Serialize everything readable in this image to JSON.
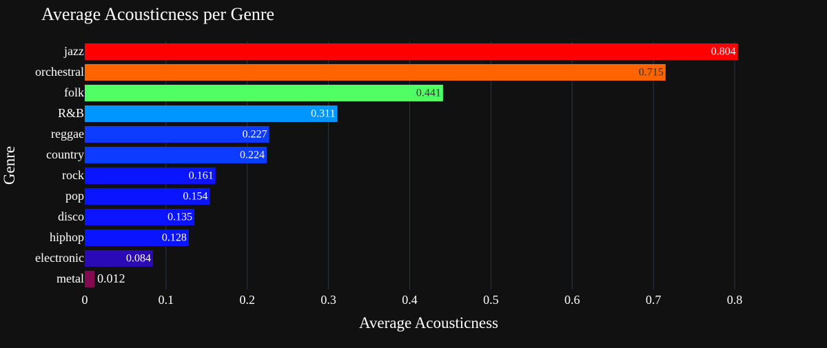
{
  "chart_data": {
    "type": "bar",
    "orientation": "horizontal",
    "title": "Average Acousticness per Genre",
    "xlabel": "Average Acousticness",
    "ylabel": "Genre",
    "categories": [
      "jazz",
      "orchestral",
      "folk",
      "R&B",
      "reggae",
      "country",
      "rock",
      "pop",
      "disco",
      "hiphop",
      "electronic",
      "metal"
    ],
    "values": [
      0.804,
      0.715,
      0.441,
      0.311,
      0.227,
      0.224,
      0.161,
      0.154,
      0.135,
      0.128,
      0.084,
      0.012
    ],
    "value_labels": [
      "0.804",
      "0.715",
      "0.441",
      "0.311",
      "0.227",
      "0.224",
      "0.161",
      "0.154",
      "0.135",
      "0.128",
      "0.084",
      "0.012"
    ],
    "colors": [
      "#ff0000",
      "#ff6400",
      "#50ff64",
      "#0096ff",
      "#0c3cff",
      "#0c3cff",
      "#0a14ff",
      "#0a14ff",
      "#0a14ff",
      "#0a14ff",
      "#2a0ab4",
      "#820a50"
    ],
    "label_colors": [
      "#ffffff",
      "#333333",
      "#333333",
      "#ffffff",
      "#ffffff",
      "#ffffff",
      "#ffffff",
      "#ffffff",
      "#ffffff",
      "#ffffff",
      "#ffffff",
      "#ffffff"
    ],
    "xlim": [
      0,
      0.8
    ],
    "xticks": [
      0,
      0.1,
      0.2,
      0.3,
      0.4,
      0.5,
      0.6,
      0.7,
      0.8
    ],
    "xtick_labels": [
      "0",
      "0.1",
      "0.2",
      "0.3",
      "0.4",
      "0.5",
      "0.6",
      "0.7",
      "0.8"
    ],
    "grid": true,
    "legend": false,
    "background": "#111111",
    "text_color": "#ffffff",
    "grid_color": "#2f3546"
  }
}
